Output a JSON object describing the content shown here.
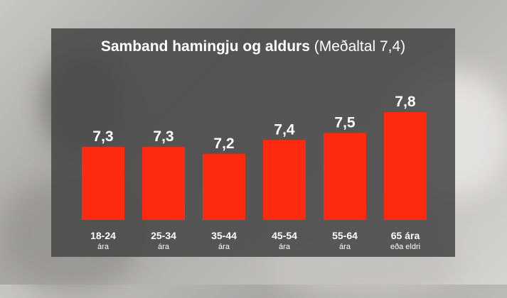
{
  "chart_data": {
    "type": "bar",
    "title": "Samband hamingju og aldurs",
    "subtitle": "(Meðaltal 7,4)",
    "categories": [
      {
        "line1": "18-24",
        "line2": "ára"
      },
      {
        "line1": "25-34",
        "line2": "ára"
      },
      {
        "line1": "35-44",
        "line2": "ára"
      },
      {
        "line1": "45-54",
        "line2": "ára"
      },
      {
        "line1": "55-64",
        "line2": "ára"
      },
      {
        "line1": "65 ára",
        "line2": "eða eldri"
      }
    ],
    "values": [
      7.3,
      7.3,
      7.2,
      7.4,
      7.5,
      7.8
    ],
    "value_labels": [
      "7,3",
      "7,3",
      "7,2",
      "7,4",
      "7,5",
      "7,8"
    ],
    "bar_color": "#ff2a10",
    "grid": false,
    "legend": "none"
  }
}
